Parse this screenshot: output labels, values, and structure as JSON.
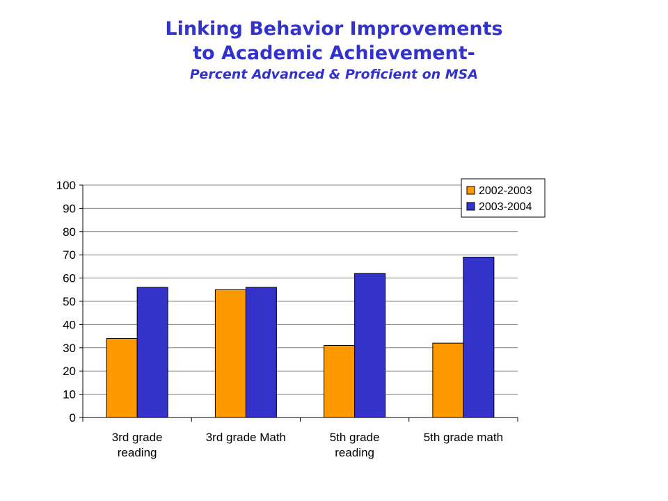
{
  "chart_data": {
    "type": "bar",
    "title": "Linking Behavior Improvements to Academic Achievement-",
    "title_lines": [
      "Linking Behavior Improvements",
      "to Academic Achievement-"
    ],
    "subtitle": "Percent Advanced & Proficient on MSA",
    "categories": [
      [
        "3rd grade",
        "reading"
      ],
      [
        "3rd grade Math"
      ],
      [
        "5th grade",
        "reading"
      ],
      [
        "5th grade math"
      ]
    ],
    "series": [
      {
        "name": "2002-2003",
        "color": "#ff9900",
        "values": [
          34,
          55,
          31,
          32
        ]
      },
      {
        "name": "2003-2004",
        "color": "#3333cc",
        "values": [
          56,
          56,
          62,
          69
        ]
      }
    ],
    "ylim": [
      0,
      100
    ],
    "yticks": [
      "0",
      "10",
      "20",
      "30",
      "40",
      "50",
      "60",
      "70",
      "80",
      "90",
      "100"
    ],
    "grid": true,
    "legend_position": "top-right",
    "xlabel": "",
    "ylabel": ""
  }
}
